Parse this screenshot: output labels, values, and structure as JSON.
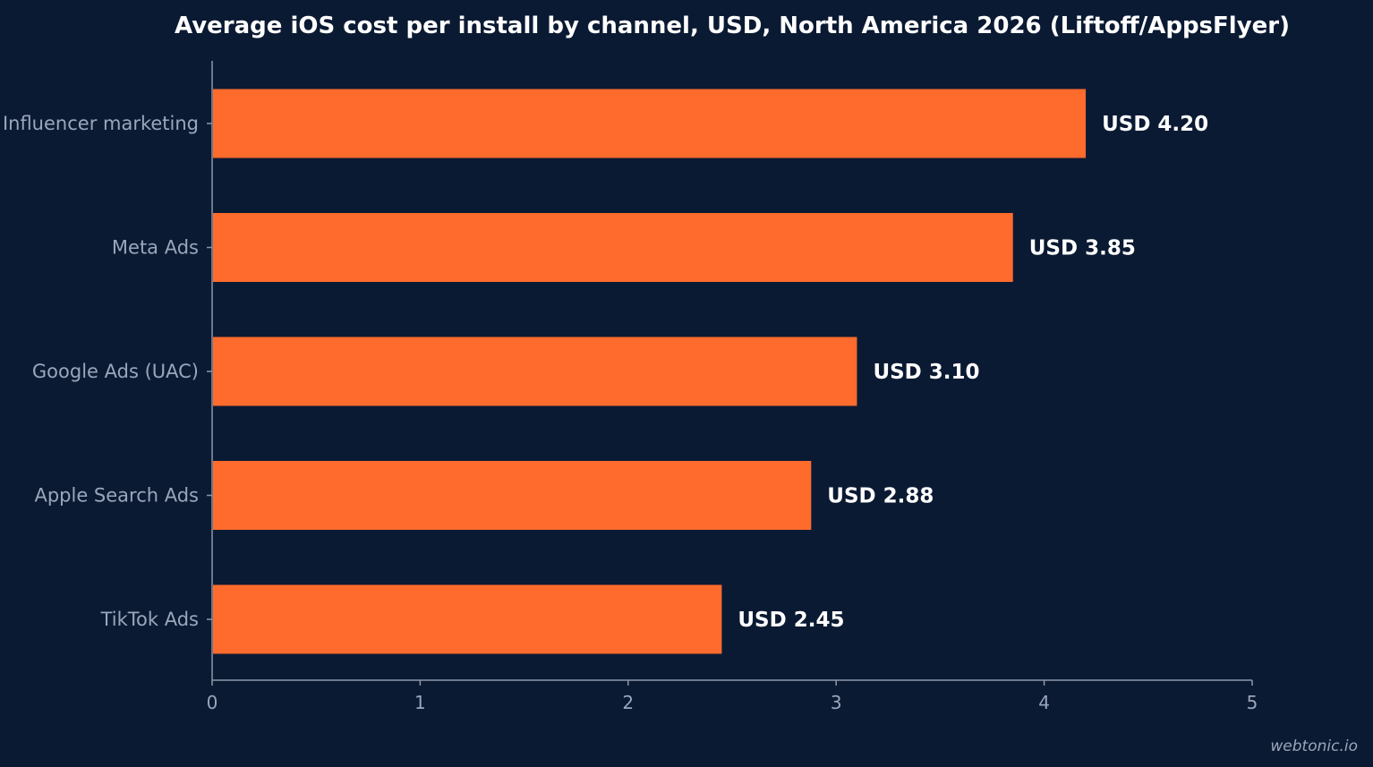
{
  "chart_data": {
    "type": "bar",
    "orientation": "horizontal",
    "title": "Average iOS cost per install by channel, USD, North America 2026 (Liftoff/AppsFlyer)",
    "categories": [
      "Influencer marketing",
      "Meta Ads",
      "Google Ads (UAC)",
      "Apple Search Ads",
      "TikTok Ads"
    ],
    "values": [
      4.2,
      3.85,
      3.1,
      2.88,
      2.45
    ],
    "value_labels": [
      "USD 4.20",
      "USD 3.85",
      "USD 3.10",
      "USD 2.88",
      "USD 2.45"
    ],
    "xlim": [
      0,
      5
    ],
    "x_ticks": [
      0,
      1,
      2,
      3,
      4,
      5
    ],
    "x_tick_labels": [
      "0",
      "1",
      "2",
      "3",
      "4",
      "5"
    ],
    "xlabel": "",
    "ylabel": "",
    "grid": false,
    "legend": "none",
    "colors": {
      "background": "#0b1a33",
      "bar": "#ff6b2c",
      "axis": "#8c97aa",
      "label": "#9aa6ba",
      "title": "#ffffff"
    }
  },
  "watermark": "webtonic.io"
}
